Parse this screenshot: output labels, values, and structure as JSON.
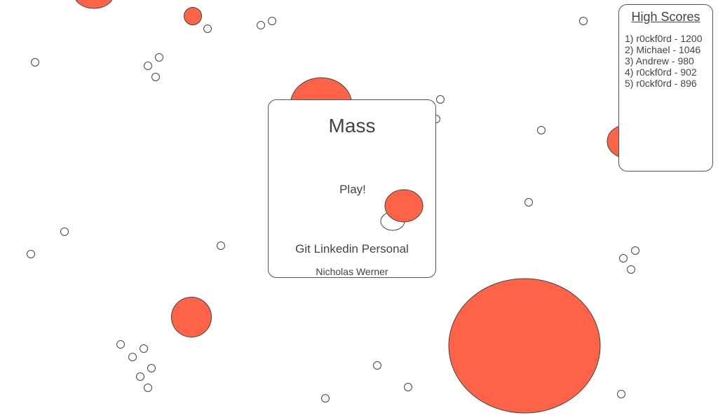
{
  "game": {
    "colors": {
      "blob_fill": "#ff6347",
      "blob_stroke": "#444444",
      "pellet_stroke": "#444444",
      "text": "#444444"
    }
  },
  "menu": {
    "title": "Mass",
    "play_label": "Play!",
    "links": [
      "Git",
      "Linkedin",
      "Personal"
    ],
    "author": "Nicholas Werner"
  },
  "high_scores": {
    "title": "High Scores",
    "entries": [
      "1) r0ckf0rd - 1200",
      "2) Michael - 1046",
      "3) Andrew - 980",
      "4) r0ckf0rd - 902",
      "5) r0ckf0rd - 896"
    ]
  }
}
